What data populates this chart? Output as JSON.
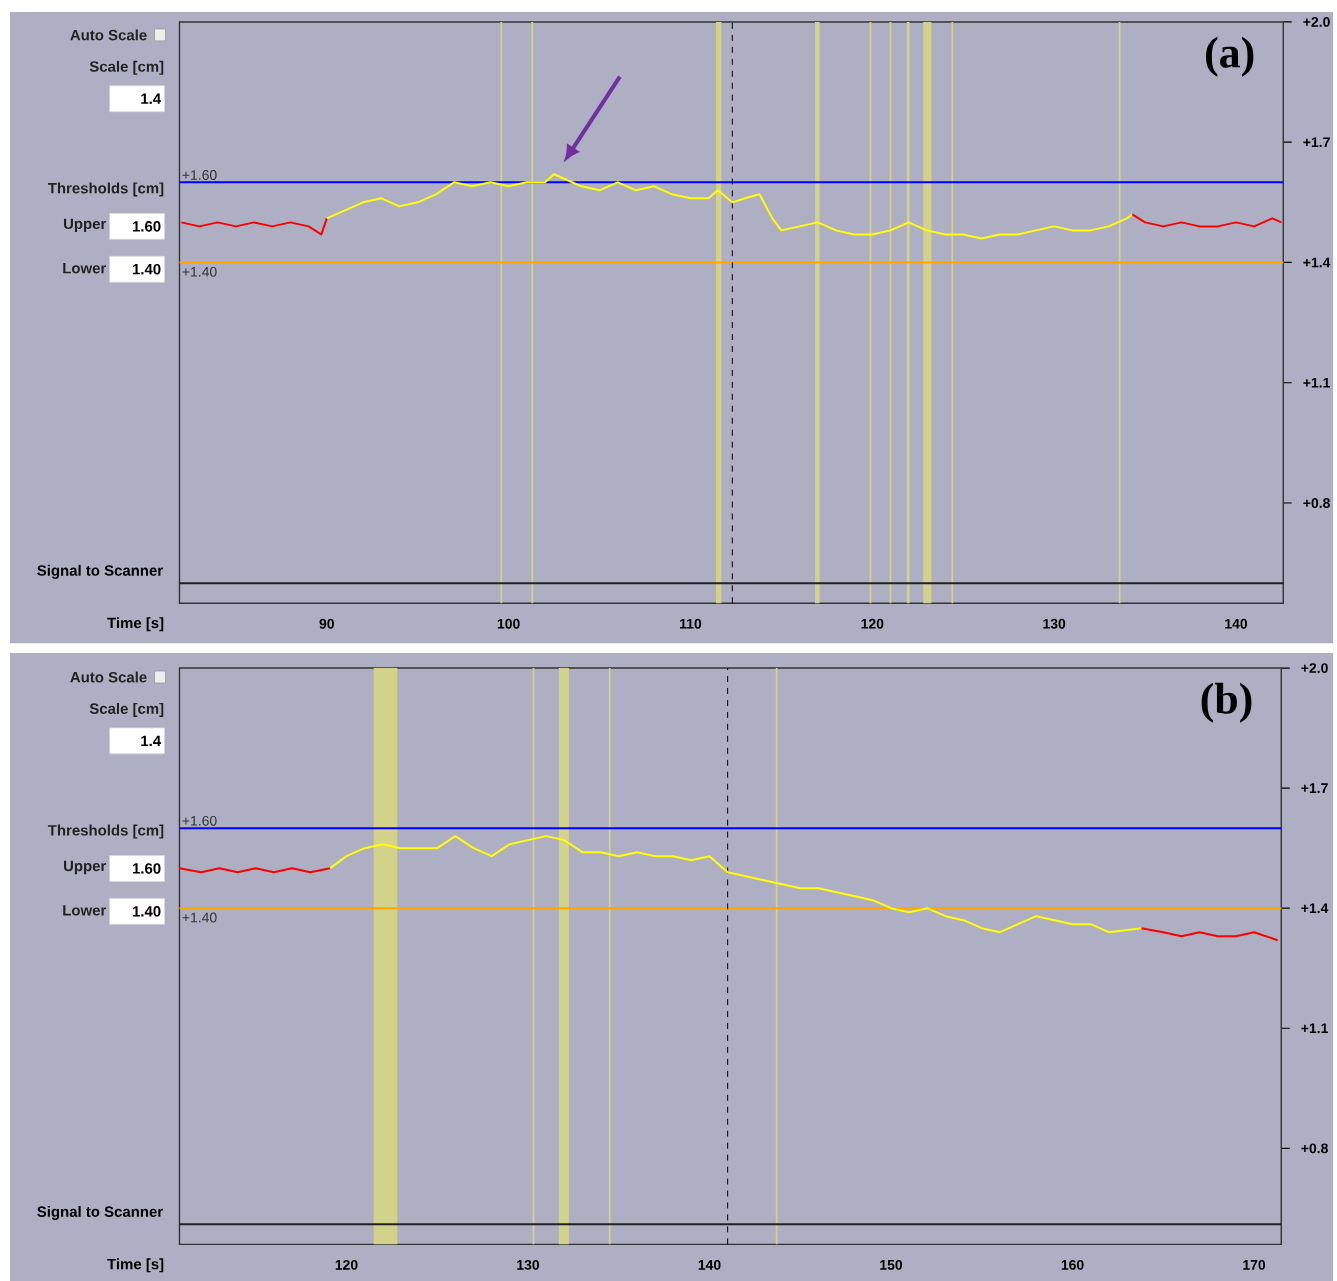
{
  "chart_data": [
    {
      "type": "line",
      "title": "(a)",
      "xlabel": "Time [s]",
      "annotations": [
        "Auto Scale",
        "Scale [cm]",
        "1.4",
        "Thresholds [cm]",
        "Upper",
        "1.60",
        "Lower",
        "1.40"
      ],
      "series": [
        {
          "color": "#ff0000",
          "x": [
            82,
            83,
            84,
            85,
            86,
            87,
            88,
            89,
            89.7,
            90
          ],
          "values": [
            1.5,
            1.49,
            1.5,
            1.49,
            1.5,
            1.49,
            1.5,
            1.49,
            1.47,
            1.51
          ]
        },
        {
          "color": "#ffff00",
          "x": [
            90,
            91,
            92,
            93,
            94,
            95,
            96,
            97,
            98,
            99,
            100,
            101,
            102,
            102.5,
            103,
            104,
            105,
            106,
            107,
            108,
            109,
            110,
            111,
            111.5,
            112.3,
            113,
            113.8,
            114.5,
            115,
            116,
            117,
            118,
            119,
            120,
            121,
            122,
            123,
            124,
            125,
            126,
            127,
            128,
            129,
            130,
            131,
            132,
            133,
            134,
            134.3
          ],
          "values": [
            1.51,
            1.53,
            1.55,
            1.56,
            1.54,
            1.55,
            1.57,
            1.6,
            1.59,
            1.6,
            1.59,
            1.6,
            1.6,
            1.62,
            1.61,
            1.59,
            1.58,
            1.6,
            1.58,
            1.59,
            1.57,
            1.56,
            1.56,
            1.58,
            1.55,
            1.56,
            1.57,
            1.51,
            1.48,
            1.49,
            1.5,
            1.48,
            1.47,
            1.47,
            1.48,
            1.5,
            1.48,
            1.47,
            1.47,
            1.46,
            1.47,
            1.47,
            1.48,
            1.49,
            1.48,
            1.48,
            1.49,
            1.51,
            1.52
          ]
        },
        {
          "color": "#ff0000",
          "x": [
            134.3,
            135,
            136,
            137,
            138,
            139,
            140,
            141,
            142,
            142.5
          ],
          "values": [
            1.52,
            1.5,
            1.49,
            1.5,
            1.49,
            1.49,
            1.5,
            1.49,
            1.51,
            1.5
          ]
        }
      ],
      "xlim": [
        81.9,
        142.6
      ],
      "ylim": [
        0.55,
        2.0
      ],
      "xticks": [
        90,
        100,
        110,
        120,
        130,
        140
      ],
      "yticks": [
        {
          "value": 2.0,
          "label": "+2.0"
        },
        {
          "value": 1.7,
          "label": "+1.7"
        },
        {
          "value": 1.4,
          "label": "+1.4"
        },
        {
          "value": 1.1,
          "label": "+1.1"
        },
        {
          "value": 0.8,
          "label": "+0.8"
        }
      ],
      "ref_lines": [
        {
          "axis": "y",
          "value": 1.6,
          "label": "+1.60",
          "color": "#0000ff"
        },
        {
          "axis": "y",
          "value": 1.4,
          "label": "+1.40",
          "color": "#ffa500"
        },
        {
          "axis": "y",
          "value": 0.6,
          "label": "Signal to Scanner",
          "color": "#222222"
        },
        {
          "axis": "x",
          "value": 112.3,
          "color": "#000000",
          "line_style": "dashed"
        }
      ],
      "bands": [
        {
          "axis": "x",
          "from": 99.55,
          "to": 99.65,
          "color": "#d2d28a"
        },
        {
          "axis": "x",
          "from": 101.25,
          "to": 101.35,
          "color": "#d2d28a"
        },
        {
          "axis": "x",
          "from": 111.4,
          "to": 111.7,
          "color": "#d2d28a"
        },
        {
          "axis": "x",
          "from": 116.85,
          "to": 117.1,
          "color": "#d2d28a"
        },
        {
          "axis": "x",
          "from": 119.85,
          "to": 119.95,
          "color": "#d2d28a"
        },
        {
          "axis": "x",
          "from": 120.95,
          "to": 121.05,
          "color": "#d2d28a"
        },
        {
          "axis": "x",
          "from": 121.9,
          "to": 122.05,
          "color": "#d2d28a"
        },
        {
          "axis": "x",
          "from": 122.8,
          "to": 123.25,
          "color": "#d2d28a"
        },
        {
          "axis": "x",
          "from": 124.35,
          "to": 124.45,
          "color": "#d2d28a"
        },
        {
          "axis": "x",
          "from": 133.55,
          "to": 133.65,
          "color": "#d2d28a"
        }
      ]
    },
    {
      "type": "line",
      "title": "(b)",
      "xlabel": "Time [s]",
      "annotations": [
        "Auto Scale",
        "Scale [cm]",
        "1.4",
        "Thresholds [cm]",
        "Upper",
        "1.60",
        "Lower",
        "1.40"
      ],
      "series": [
        {
          "color": "#ff0000",
          "x": [
            110.8,
            112,
            113,
            114,
            115,
            116,
            117,
            118,
            119.1
          ],
          "values": [
            1.5,
            1.49,
            1.5,
            1.49,
            1.5,
            1.49,
            1.5,
            1.49,
            1.5
          ]
        },
        {
          "color": "#ffff00",
          "x": [
            119.1,
            120,
            121,
            122,
            123,
            124,
            125,
            126,
            127,
            128,
            129,
            130,
            131,
            132,
            133,
            134,
            135,
            136,
            137,
            138,
            139,
            140,
            141,
            142,
            143,
            144,
            145,
            146,
            147,
            148,
            149,
            150,
            151,
            152,
            153,
            154,
            155,
            156,
            157,
            158,
            159,
            160,
            161,
            162,
            163.8
          ],
          "values": [
            1.5,
            1.53,
            1.55,
            1.56,
            1.55,
            1.55,
            1.55,
            1.58,
            1.55,
            1.53,
            1.56,
            1.57,
            1.58,
            1.57,
            1.54,
            1.54,
            1.53,
            1.54,
            1.53,
            1.53,
            1.52,
            1.53,
            1.49,
            1.48,
            1.47,
            1.46,
            1.45,
            1.45,
            1.44,
            1.43,
            1.42,
            1.4,
            1.39,
            1.4,
            1.38,
            1.37,
            1.35,
            1.34,
            1.36,
            1.38,
            1.37,
            1.36,
            1.36,
            1.34,
            1.35
          ]
        },
        {
          "color": "#ff0000",
          "x": [
            163.8,
            165,
            166,
            167,
            168,
            169,
            170,
            171.3
          ],
          "values": [
            1.35,
            1.34,
            1.33,
            1.34,
            1.33,
            1.33,
            1.34,
            1.32
          ]
        }
      ],
      "xlim": [
        110.8,
        171.5
      ],
      "ylim": [
        0.56,
        2.0
      ],
      "xticks": [
        120,
        130,
        140,
        150,
        160,
        170
      ],
      "yticks": [
        {
          "value": 2.0,
          "label": "+2.0"
        },
        {
          "value": 1.7,
          "label": "+1.7"
        },
        {
          "value": 1.4,
          "label": "+1.4"
        },
        {
          "value": 1.1,
          "label": "+1.1"
        },
        {
          "value": 0.8,
          "label": "+0.8"
        }
      ],
      "ref_lines": [
        {
          "axis": "y",
          "value": 1.6,
          "label": "+1.60",
          "color": "#0000ff"
        },
        {
          "axis": "y",
          "value": 1.4,
          "label": "+1.40",
          "color": "#ffa500"
        },
        {
          "axis": "y",
          "value": 0.61,
          "label": "Signal to Scanner",
          "color": "#222222"
        },
        {
          "axis": "x",
          "value": 141.0,
          "color": "#000000",
          "line_style": "dashed"
        }
      ],
      "bands": [
        {
          "axis": "x",
          "from": 121.5,
          "to": 122.8,
          "color": "#d2d28a"
        },
        {
          "axis": "x",
          "from": 130.25,
          "to": 130.35,
          "color": "#d2d28a"
        },
        {
          "axis": "x",
          "from": 131.7,
          "to": 132.25,
          "color": "#d2d28a"
        },
        {
          "axis": "x",
          "from": 134.45,
          "to": 134.55,
          "color": "#d2d28a"
        },
        {
          "axis": "x",
          "from": 143.65,
          "to": 143.75,
          "color": "#d2d28a"
        }
      ]
    }
  ]
}
